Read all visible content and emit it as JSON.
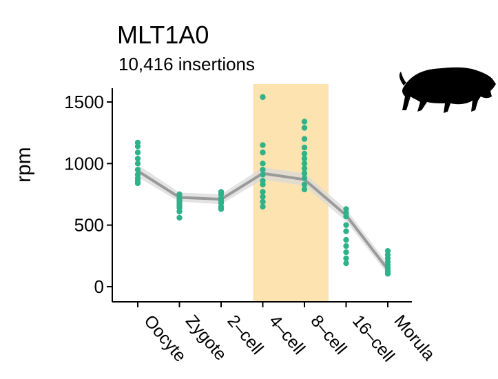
{
  "chart_data": {
    "type": "scatter",
    "title": "MLT1A0",
    "subtitle": "10,416 insertions",
    "xlabel": "",
    "ylabel": "rpm",
    "categories": [
      "Oocyte",
      "Zygote",
      "2–cell",
      "4–cell",
      "8–cell",
      "16–cell",
      "Morula"
    ],
    "ylim": [
      -80,
      1600
    ],
    "yticks": [
      0,
      500,
      1000,
      1500
    ],
    "highlight_categories": [
      "4–cell",
      "8–cell"
    ],
    "mean_series": {
      "values": [
        940,
        725,
        710,
        920,
        870,
        580,
        140
      ],
      "ci_low": [
        890,
        690,
        670,
        870,
        820,
        530,
        100
      ],
      "ci_high": [
        990,
        765,
        750,
        970,
        920,
        630,
        185
      ]
    },
    "points": [
      [
        1170,
        1140,
        1090,
        1040,
        1000,
        950,
        910,
        880,
        860,
        840
      ],
      [
        750,
        720,
        700,
        680,
        660,
        640,
        610,
        560
      ],
      [
        770,
        750,
        720,
        700,
        680,
        650,
        630
      ],
      [
        1540,
        1150,
        1090,
        1000,
        950,
        910,
        860,
        830,
        770,
        730,
        690,
        650
      ],
      [
        1340,
        1290,
        1200,
        1130,
        1080,
        1040,
        1000,
        960,
        920,
        880,
        830,
        790
      ],
      [
        630,
        600,
        570,
        500,
        450,
        380,
        330,
        280,
        230,
        190
      ],
      [
        290,
        260,
        230,
        200,
        175,
        150,
        125,
        105
      ]
    ],
    "colors": {
      "points": "#2fb28a",
      "line": "#9a9a9a",
      "band": "#d9d9d9",
      "highlight": "#fce3b0",
      "axis": "#000000"
    },
    "icon": "boar-silhouette-icon"
  }
}
